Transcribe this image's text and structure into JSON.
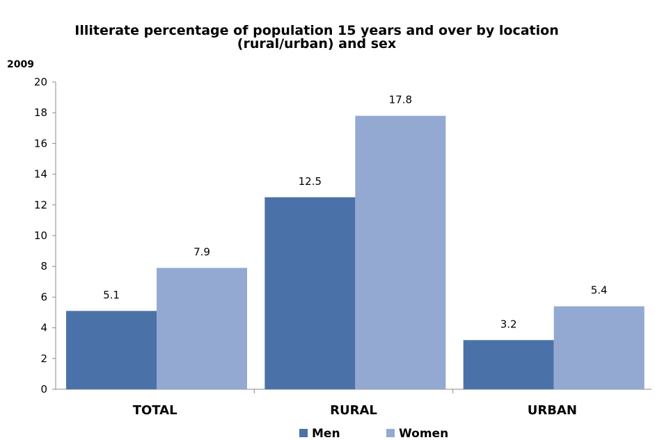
{
  "chart_data": {
    "type": "bar",
    "title_line1": "Illiterate percentage of population 15 years and over by location",
    "title_line2": "(rural/urban) and sex",
    "year_label": "2009",
    "categories": [
      "TOTAL",
      "RURAL",
      "URBAN"
    ],
    "series": [
      {
        "name": "Men",
        "values": [
          5.1,
          12.5,
          3.2
        ],
        "labels": [
          "5.1",
          "12.5",
          "3.2"
        ],
        "color": "#4a72a8"
      },
      {
        "name": "Women",
        "values": [
          7.9,
          17.8,
          5.4
        ],
        "labels": [
          "7.9",
          "17.8",
          "5.4"
        ],
        "color": "#93a9d2"
      }
    ],
    "ylim": [
      0,
      20
    ],
    "yticks": [
      "0",
      "2",
      "4",
      "6",
      "8",
      "10",
      "12",
      "14",
      "16",
      "18",
      "20"
    ],
    "grid": false,
    "legend_position": "bottom"
  }
}
